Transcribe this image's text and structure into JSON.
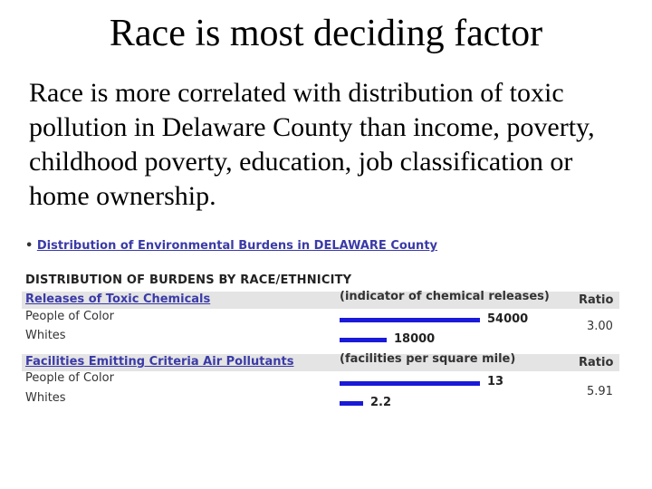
{
  "slide": {
    "title": "Race is most deciding factor",
    "body": "Race is more correlated with distribution of toxic pollution in Delaware County than income, poverty, childhood poverty, education, job classification or home ownership."
  },
  "screenshot": {
    "bullet_char": "•",
    "link_text": "Distribution of Environmental Burdens in DELAWARE County",
    "heading": "DISTRIBUTION OF BURDENS BY RACE/ETHNICITY",
    "sections": [
      {
        "name": "Releases of Toxic Chemicals",
        "indicator": "(indicator of chemical releases)",
        "ratio_header": "Ratio",
        "ratio_value": "3.00",
        "rows": [
          {
            "label": "People of Color",
            "value": 54000,
            "value_text": "54000"
          },
          {
            "label": "Whites",
            "value": 18000,
            "value_text": "18000"
          }
        ],
        "bar_color": "#1a1ad8"
      },
      {
        "name": "Facilities Emitting Criteria Air Pollutants",
        "indicator": "(facilities per square mile)",
        "ratio_header": "Ratio",
        "ratio_value": "5.91",
        "rows": [
          {
            "label": "People of Color",
            "value": 13,
            "value_text": "13"
          },
          {
            "label": "Whites",
            "value": 2.2,
            "value_text": "2.2"
          }
        ],
        "bar_color": "#1a1ad8"
      }
    ]
  }
}
